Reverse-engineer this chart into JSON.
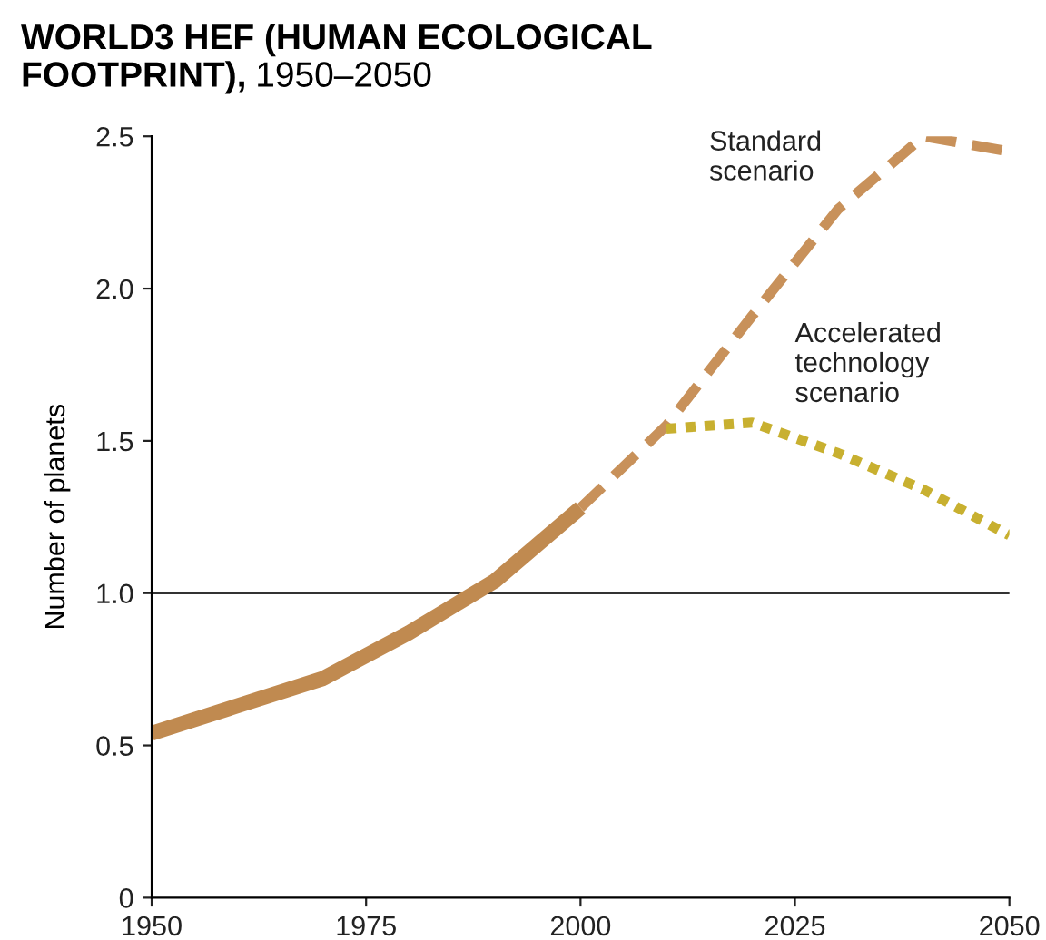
{
  "chart_data": {
    "type": "line",
    "title": "WORLD3 HEF (HUMAN ECOLOGICAL\nFOOTPRINT),",
    "subtitle": "1950–2050",
    "ylabel": "Number of planets",
    "xlim": [
      1950,
      2050
    ],
    "xticks": [
      1950,
      1975,
      2000,
      2025,
      2050
    ],
    "ylim": [
      0,
      2.5
    ],
    "yticks": [
      0,
      0.5,
      {
        "value": 1,
        "label": "1.0"
      },
      1.5,
      {
        "value": 2,
        "label": "2.0"
      },
      2.5
    ],
    "grid": false,
    "legend": false,
    "ref_lines": [
      {
        "axis": "y",
        "value": 1.0,
        "color": "#333333",
        "line_style": "solid"
      }
    ],
    "series": [
      {
        "color": "#c08a50",
        "line_style": "solid",
        "x": [
          1950,
          1960,
          1970,
          1980,
          1990,
          2000
        ],
        "values": [
          0.54,
          0.63,
          0.72,
          0.87,
          1.04,
          1.28
        ]
      },
      {
        "name": "Standard\nscenario",
        "color": "#c8915a",
        "line_style": "dashed",
        "x": [
          2000,
          2010,
          2020,
          2030,
          2040,
          2050
        ],
        "values": [
          1.28,
          1.55,
          1.91,
          2.26,
          2.5,
          2.45
        ]
      },
      {
        "name": "Accelerated\ntechnology\nscenario",
        "color": "#c8b030",
        "line_style": "dotted",
        "x": [
          2010,
          2020,
          2030,
          2040,
          2050
        ],
        "values": [
          1.54,
          1.56,
          1.46,
          1.34,
          1.19
        ]
      }
    ]
  }
}
